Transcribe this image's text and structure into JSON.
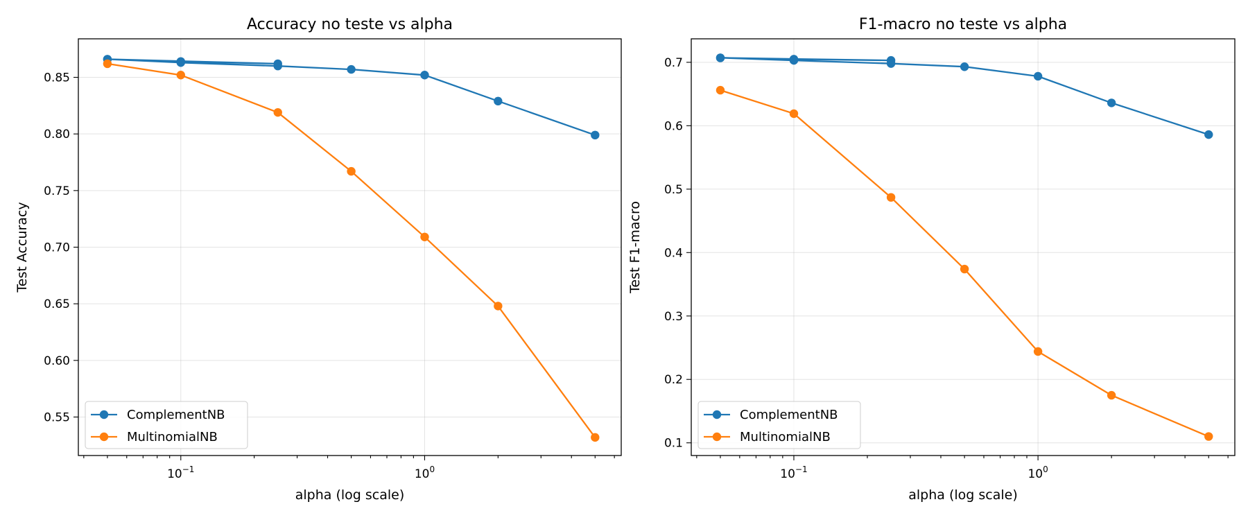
{
  "chart_data": [
    {
      "type": "line",
      "title": "Accuracy no teste vs alpha",
      "xlabel": "alpha (log scale)",
      "ylabel": "Test Accuracy",
      "xscale": "log",
      "xlim": [
        0.038,
        6.4
      ],
      "ylim": [
        0.516,
        0.884
      ],
      "xticks": [
        {
          "value": 0.1,
          "base": "10",
          "exp": "−1"
        },
        {
          "value": 1,
          "base": "10",
          "exp": "0"
        }
      ],
      "yticks": [
        0.55,
        0.6,
        0.65,
        0.7,
        0.75,
        0.8,
        0.85
      ],
      "grid": true,
      "legend_position": "lower-left",
      "series": [
        {
          "name": "ComplementNB",
          "color": "#1f77b4",
          "x": [
            0.05,
            0.1,
            0.25,
            0.05,
            0.1,
            0.25,
            0.5,
            1,
            2,
            5
          ],
          "y": [
            0.866,
            0.864,
            0.862,
            0.866,
            0.863,
            0.86,
            0.857,
            0.852,
            0.829,
            0.799
          ]
        },
        {
          "name": "MultinomialNB",
          "color": "#ff7f0e",
          "x": [
            0.05,
            0.1,
            0.25,
            0.5,
            1,
            2,
            5
          ],
          "y": [
            0.862,
            0.852,
            0.819,
            0.767,
            0.709,
            0.648,
            0.532
          ]
        }
      ]
    },
    {
      "type": "line",
      "title": "F1-macro no teste vs alpha",
      "xlabel": "alpha (log scale)",
      "ylabel": "Test F1-macro",
      "xscale": "log",
      "xlim": [
        0.038,
        6.4
      ],
      "ylim": [
        0.08,
        0.737
      ],
      "xticks": [
        {
          "value": 0.1,
          "base": "10",
          "exp": "−1"
        },
        {
          "value": 1,
          "base": "10",
          "exp": "0"
        }
      ],
      "yticks": [
        0.1,
        0.2,
        0.3,
        0.4,
        0.5,
        0.6,
        0.7
      ],
      "grid": true,
      "legend_position": "lower-left",
      "series": [
        {
          "name": "ComplementNB",
          "color": "#1f77b4",
          "x": [
            0.05,
            0.1,
            0.25,
            0.05,
            0.1,
            0.25,
            0.5,
            1,
            2,
            5
          ],
          "y": [
            0.707,
            0.705,
            0.703,
            0.707,
            0.703,
            0.698,
            0.693,
            0.678,
            0.636,
            0.586
          ]
        },
        {
          "name": "MultinomialNB",
          "color": "#ff7f0e",
          "x": [
            0.05,
            0.1,
            0.25,
            0.5,
            1,
            2,
            5
          ],
          "y": [
            0.656,
            0.619,
            0.487,
            0.374,
            0.244,
            0.175,
            0.11
          ]
        }
      ]
    }
  ]
}
